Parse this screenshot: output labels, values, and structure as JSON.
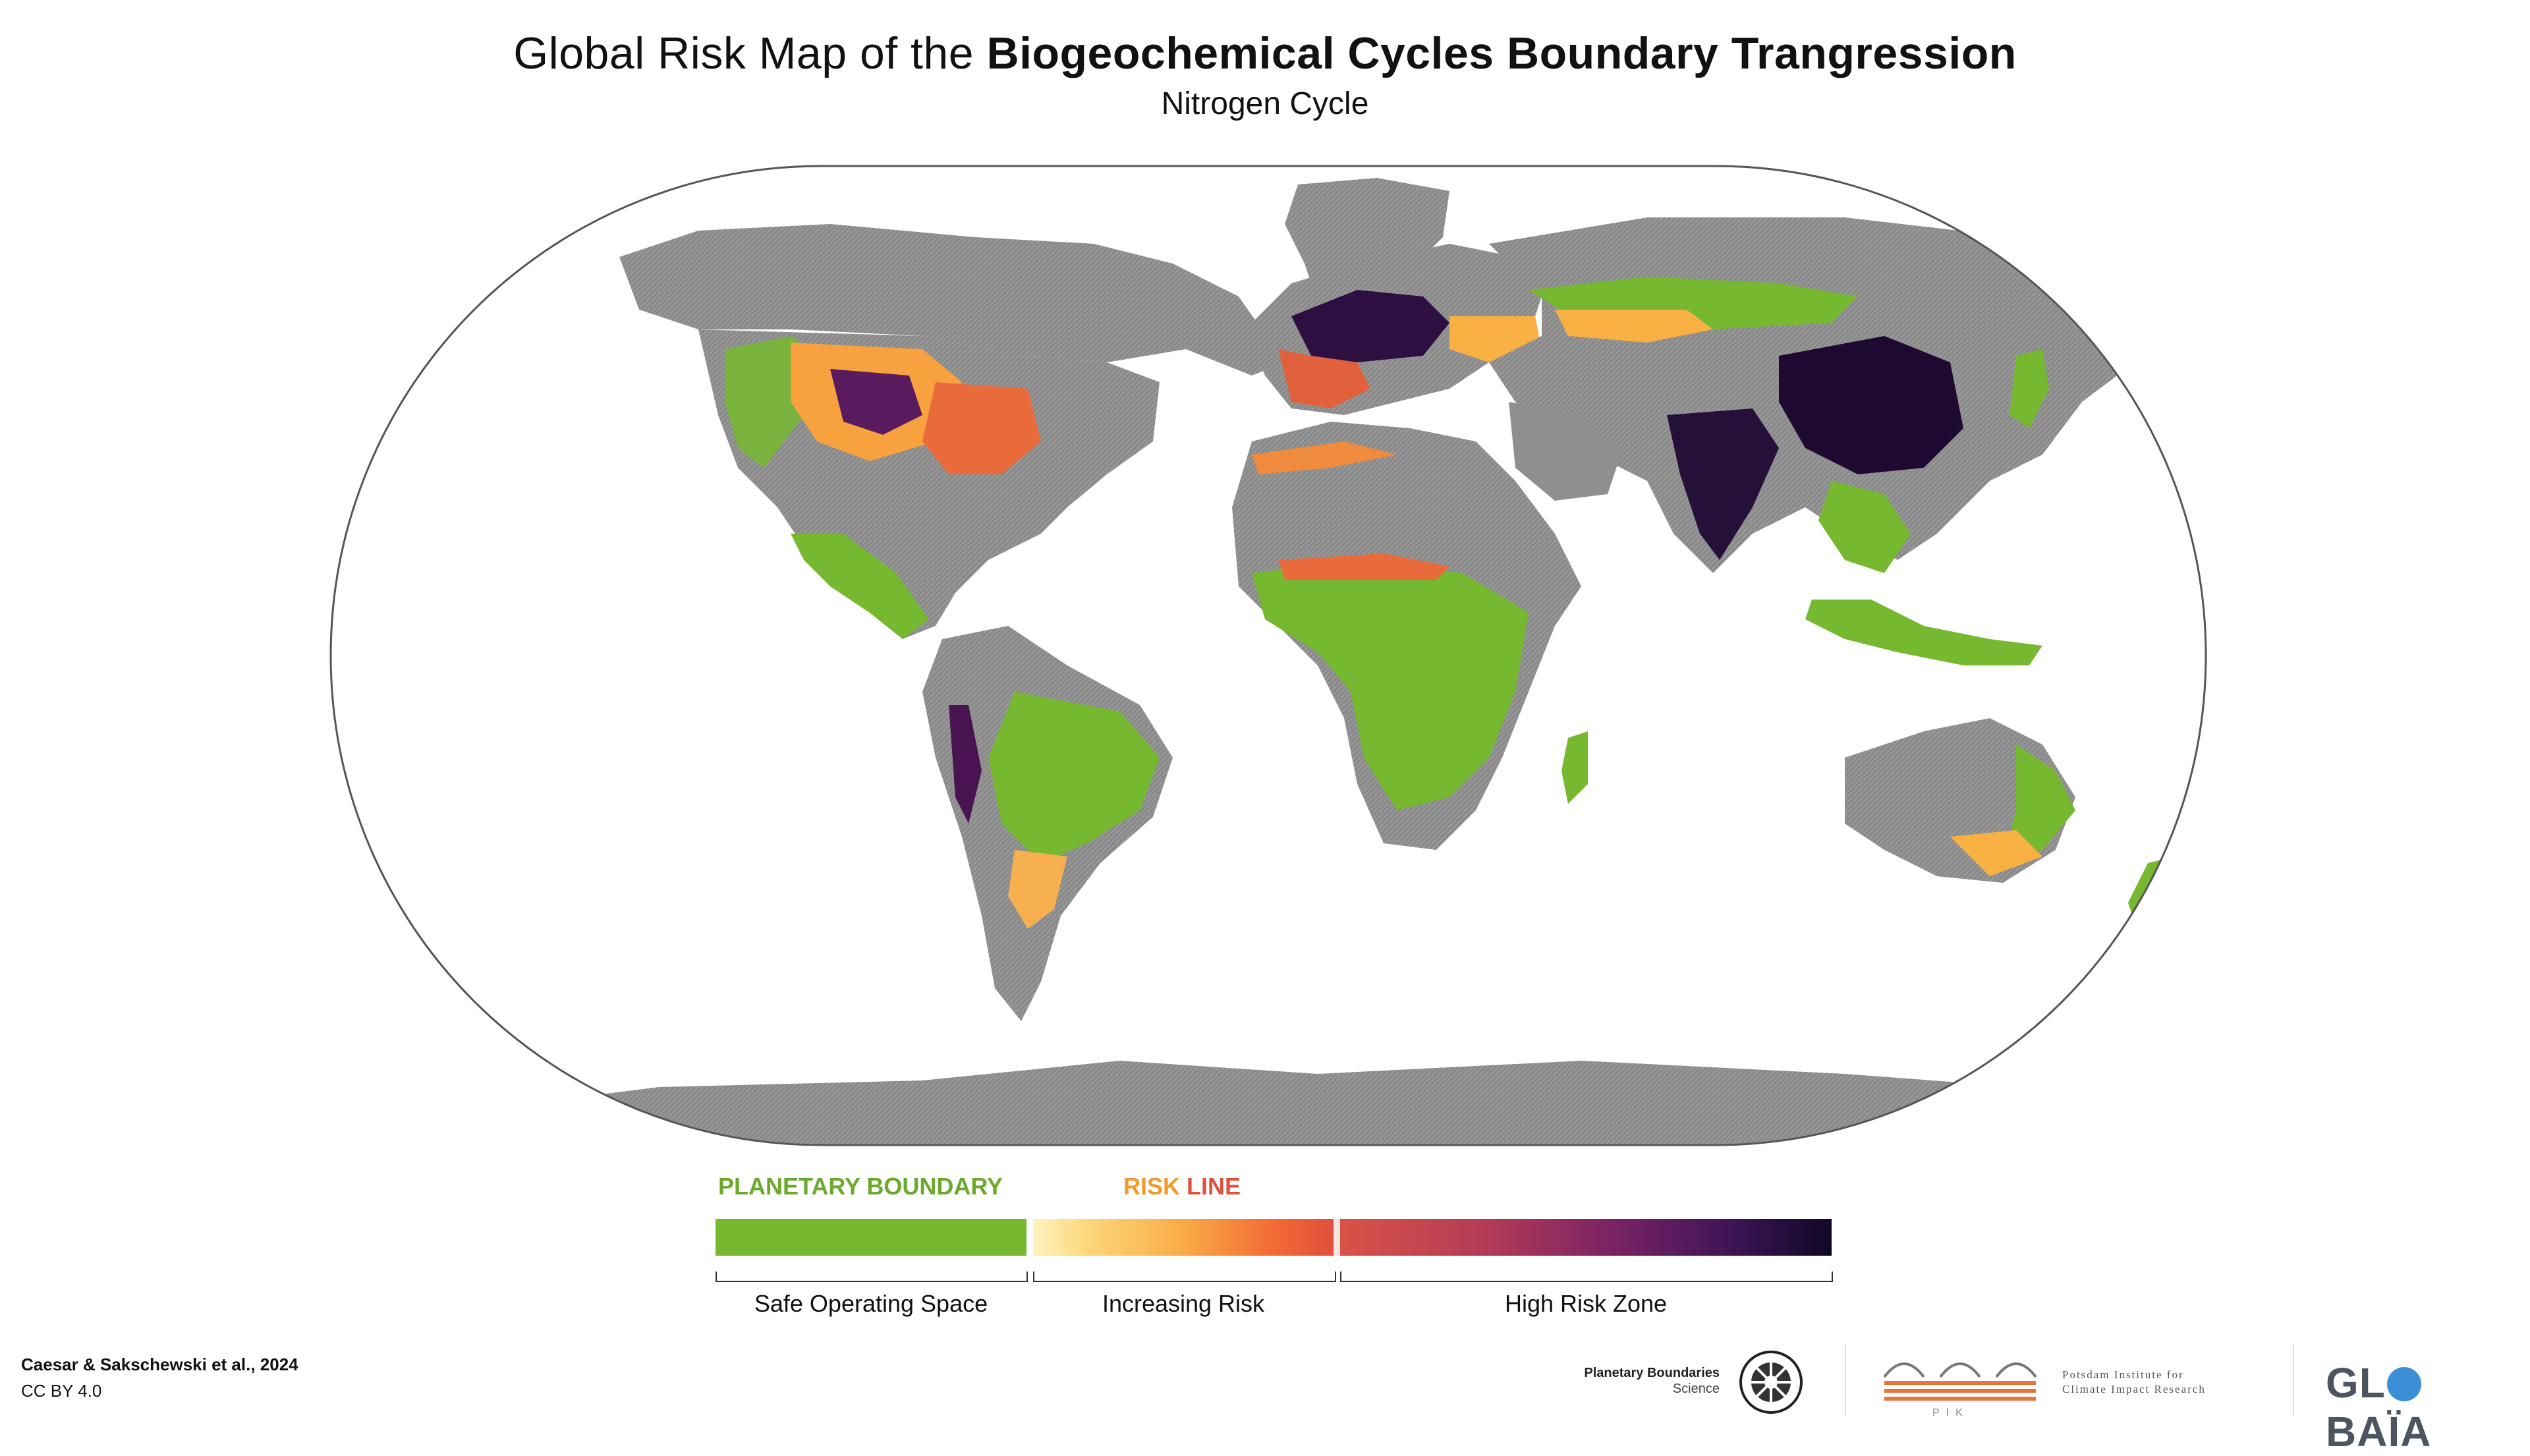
{
  "header": {
    "title_prefix": "Global Risk Map of the ",
    "title_bold": "Biogeochemical Cycles Boundary Trangression",
    "subtitle": "Nitrogen Cycle"
  },
  "legend": {
    "planetary_boundary": "PLANETARY BOUNDARY",
    "risk_word": "RISK",
    "line_word": "LINE",
    "safe": "Safe Operating Space",
    "increasing": "Increasing Risk",
    "high": "High Risk Zone"
  },
  "colors": {
    "safe": "#76b82f",
    "risk_low": "#fcd77a",
    "risk_mid": "#f26a35",
    "high_mid": "#7b2364",
    "high_max": "#100825",
    "land": "#8d8d8d",
    "globaia_blue": "#3b8fd6"
  },
  "credits": {
    "citation": "Caesar & Sakschewski et al., 2024",
    "license": "CC BY 4.0"
  },
  "logos": {
    "pbs_line1": "Planetary Boundaries",
    "pbs_line2": "Science",
    "pik_line1": "Potsdam Institute for",
    "pik_line2": "Climate Impact Research",
    "pik_abbr": "PIK",
    "globaia_pre": "GL",
    "globaia_post": "BAÏA"
  },
  "map": {
    "projection": "equal-earth",
    "icons": [
      "planetary-boundaries-logo-icon",
      "pik-logo-icon",
      "globaia-globe-icon"
    ]
  }
}
